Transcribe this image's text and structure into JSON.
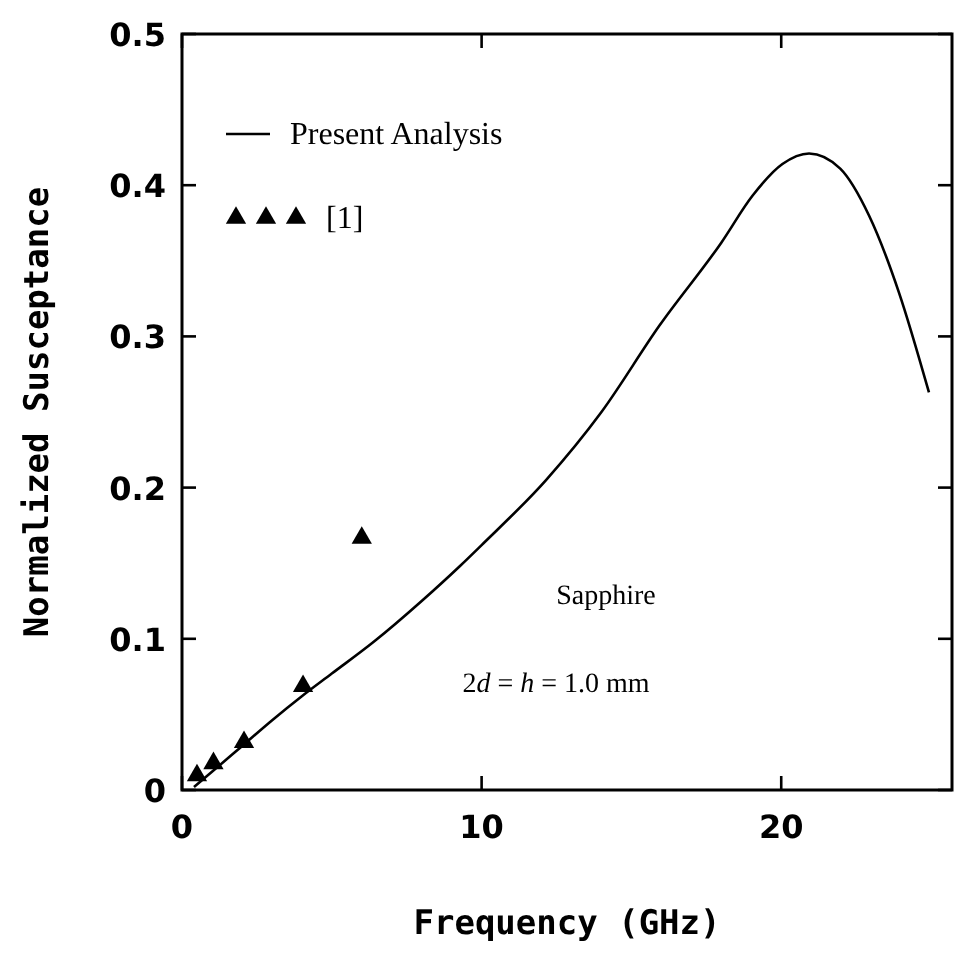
{
  "chart_data": {
    "type": "line",
    "xlabel": "Frequency (GHz)",
    "ylabel": "Normalized Susceptance",
    "xlim": [
      0,
      25.7
    ],
    "ylim": [
      0,
      0.5
    ],
    "xticks": [
      0,
      10,
      20
    ],
    "yticks": [
      0,
      0.1,
      0.2,
      0.3,
      0.4,
      0.5
    ],
    "grid": false,
    "legend": "top left",
    "series": [
      {
        "name": "Present Analysis",
        "color": "#000000",
        "marker": "none",
        "line_style": "solid",
        "x": [
          0.4,
          1,
          2,
          3,
          4,
          5,
          6.4,
          8,
          9.27,
          10,
          12.15,
          14,
          15.93,
          18,
          19.04,
          20.04,
          20.93,
          21.97,
          22.93,
          23.93,
          24.93
        ],
        "values": [
          0.002,
          0.012,
          0.029,
          0.046,
          0.062,
          0.077,
          0.098,
          0.125,
          0.148,
          0.162,
          0.205,
          0.25,
          0.307,
          0.362,
          0.393,
          0.414,
          0.421,
          0.411,
          0.38,
          0.329,
          0.263
        ]
      },
      {
        "name": "[1]",
        "type": "scatter",
        "color": "#000000",
        "marker": "triangle",
        "x": [
          0.5,
          1.05,
          2.07,
          4.04,
          6
        ],
        "values": [
          0.011,
          0.019,
          0.033,
          0.07,
          0.168
        ]
      }
    ],
    "annotations": [
      "Sapphire",
      "2d = h = 1.0 mm"
    ]
  }
}
